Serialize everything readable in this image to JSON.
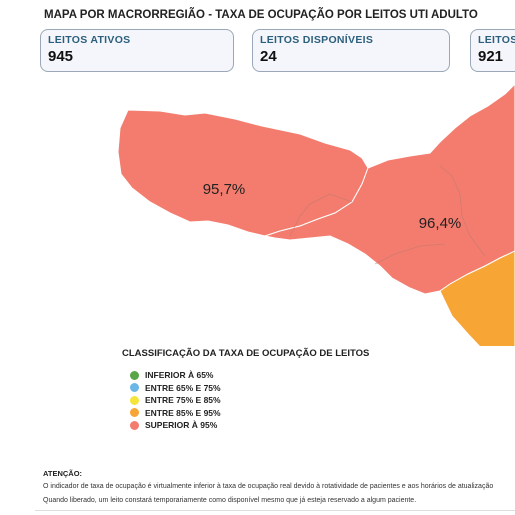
{
  "header": {
    "title": "MAPA POR MACRORREGIÃO - TAXA DE OCUPAÇÃO POR LEITOS UTI ADULTO"
  },
  "cards": [
    {
      "label": "LEITOS ATIVOS",
      "value": "945"
    },
    {
      "label": "LEITOS DISPONÍVEIS",
      "value": "24"
    },
    {
      "label": "LEITOS",
      "value": "921"
    }
  ],
  "map": {
    "regions": [
      {
        "label": "95,7%",
        "color": "#f47c6e"
      },
      {
        "label": "96,4%",
        "color": "#f47c6e"
      },
      {
        "label": "",
        "color": "#f7a535"
      }
    ]
  },
  "legend": {
    "title": "CLASSIFICAÇÃO DA TAXA DE OCUPAÇÃO DE LEITOS",
    "items": [
      {
        "label": "INFERIOR À 65%",
        "color": "#5aa547"
      },
      {
        "label": "ENTRE 65% E 75%",
        "color": "#6ab6e6"
      },
      {
        "label": "ENTRE 75% E 85%",
        "color": "#f5e43a"
      },
      {
        "label": "ENTRE 85% E 95%",
        "color": "#f7a535"
      },
      {
        "label": "SUPERIOR À 95%",
        "color": "#f47c6e"
      }
    ]
  },
  "attention": {
    "title": "ATENÇÃO:",
    "line1": "O indicador de taxa de ocupação é virtualmente inferior à taxa de ocupação real devido à rotatividade de pacientes e aos horários de atualização",
    "line2": "Quando liberado, um leito constará temporariamente como disponível mesmo que já esteja reservado a algum paciente."
  }
}
